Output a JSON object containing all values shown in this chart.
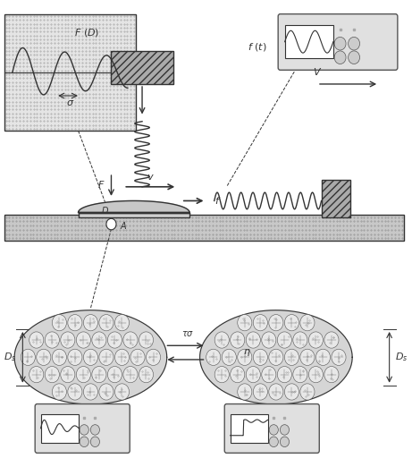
{
  "bg_color": "#f5f5f5",
  "fig_bg": "#ffffff",
  "dotted_fill": "#d8d8d8",
  "dark_gray": "#555555",
  "mid_gray": "#888888",
  "light_gray": "#cccccc",
  "line_color": "#333333",
  "title": ""
}
